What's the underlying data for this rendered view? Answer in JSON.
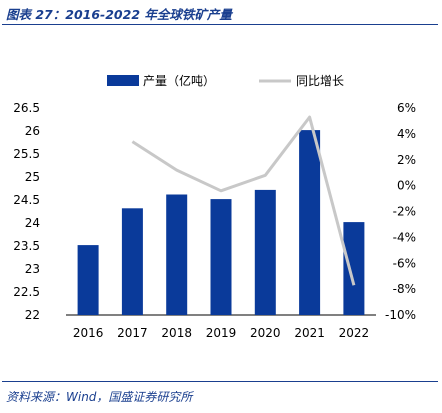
{
  "figure": {
    "title": "图表 27：2016-2022 年全球铁矿产量",
    "source": "资料来源：Wind，国盛证券研究所"
  },
  "colors": {
    "bar": "#0a3a9a",
    "line": "#c8c8c8",
    "title_text": "#1a3f8f"
  },
  "chart_data": {
    "type": "bar",
    "categories": [
      "2016",
      "2017",
      "2018",
      "2019",
      "2020",
      "2021",
      "2022"
    ],
    "series": [
      {
        "name": "产量（亿吨）",
        "type": "bar",
        "axis": "left",
        "values": [
          23.52,
          24.32,
          24.62,
          24.52,
          24.72,
          26.02,
          24.02
        ]
      },
      {
        "name": "同比增长",
        "type": "line",
        "axis": "right",
        "values": [
          null,
          3.4,
          1.2,
          -0.4,
          0.8,
          5.3,
          -7.7
        ]
      }
    ],
    "ylim_left": [
      22,
      26.5
    ],
    "yticks_left": [
      "22",
      "22.5",
      "23",
      "23.5",
      "24",
      "24.5",
      "25",
      "25.5",
      "26",
      "26.5"
    ],
    "ylim_right": [
      -10,
      6
    ],
    "yticks_right": [
      "-10%",
      "-8%",
      "-6%",
      "-4%",
      "-2%",
      "0%",
      "2%",
      "4%",
      "6%"
    ],
    "grid": false,
    "legend": "top"
  }
}
